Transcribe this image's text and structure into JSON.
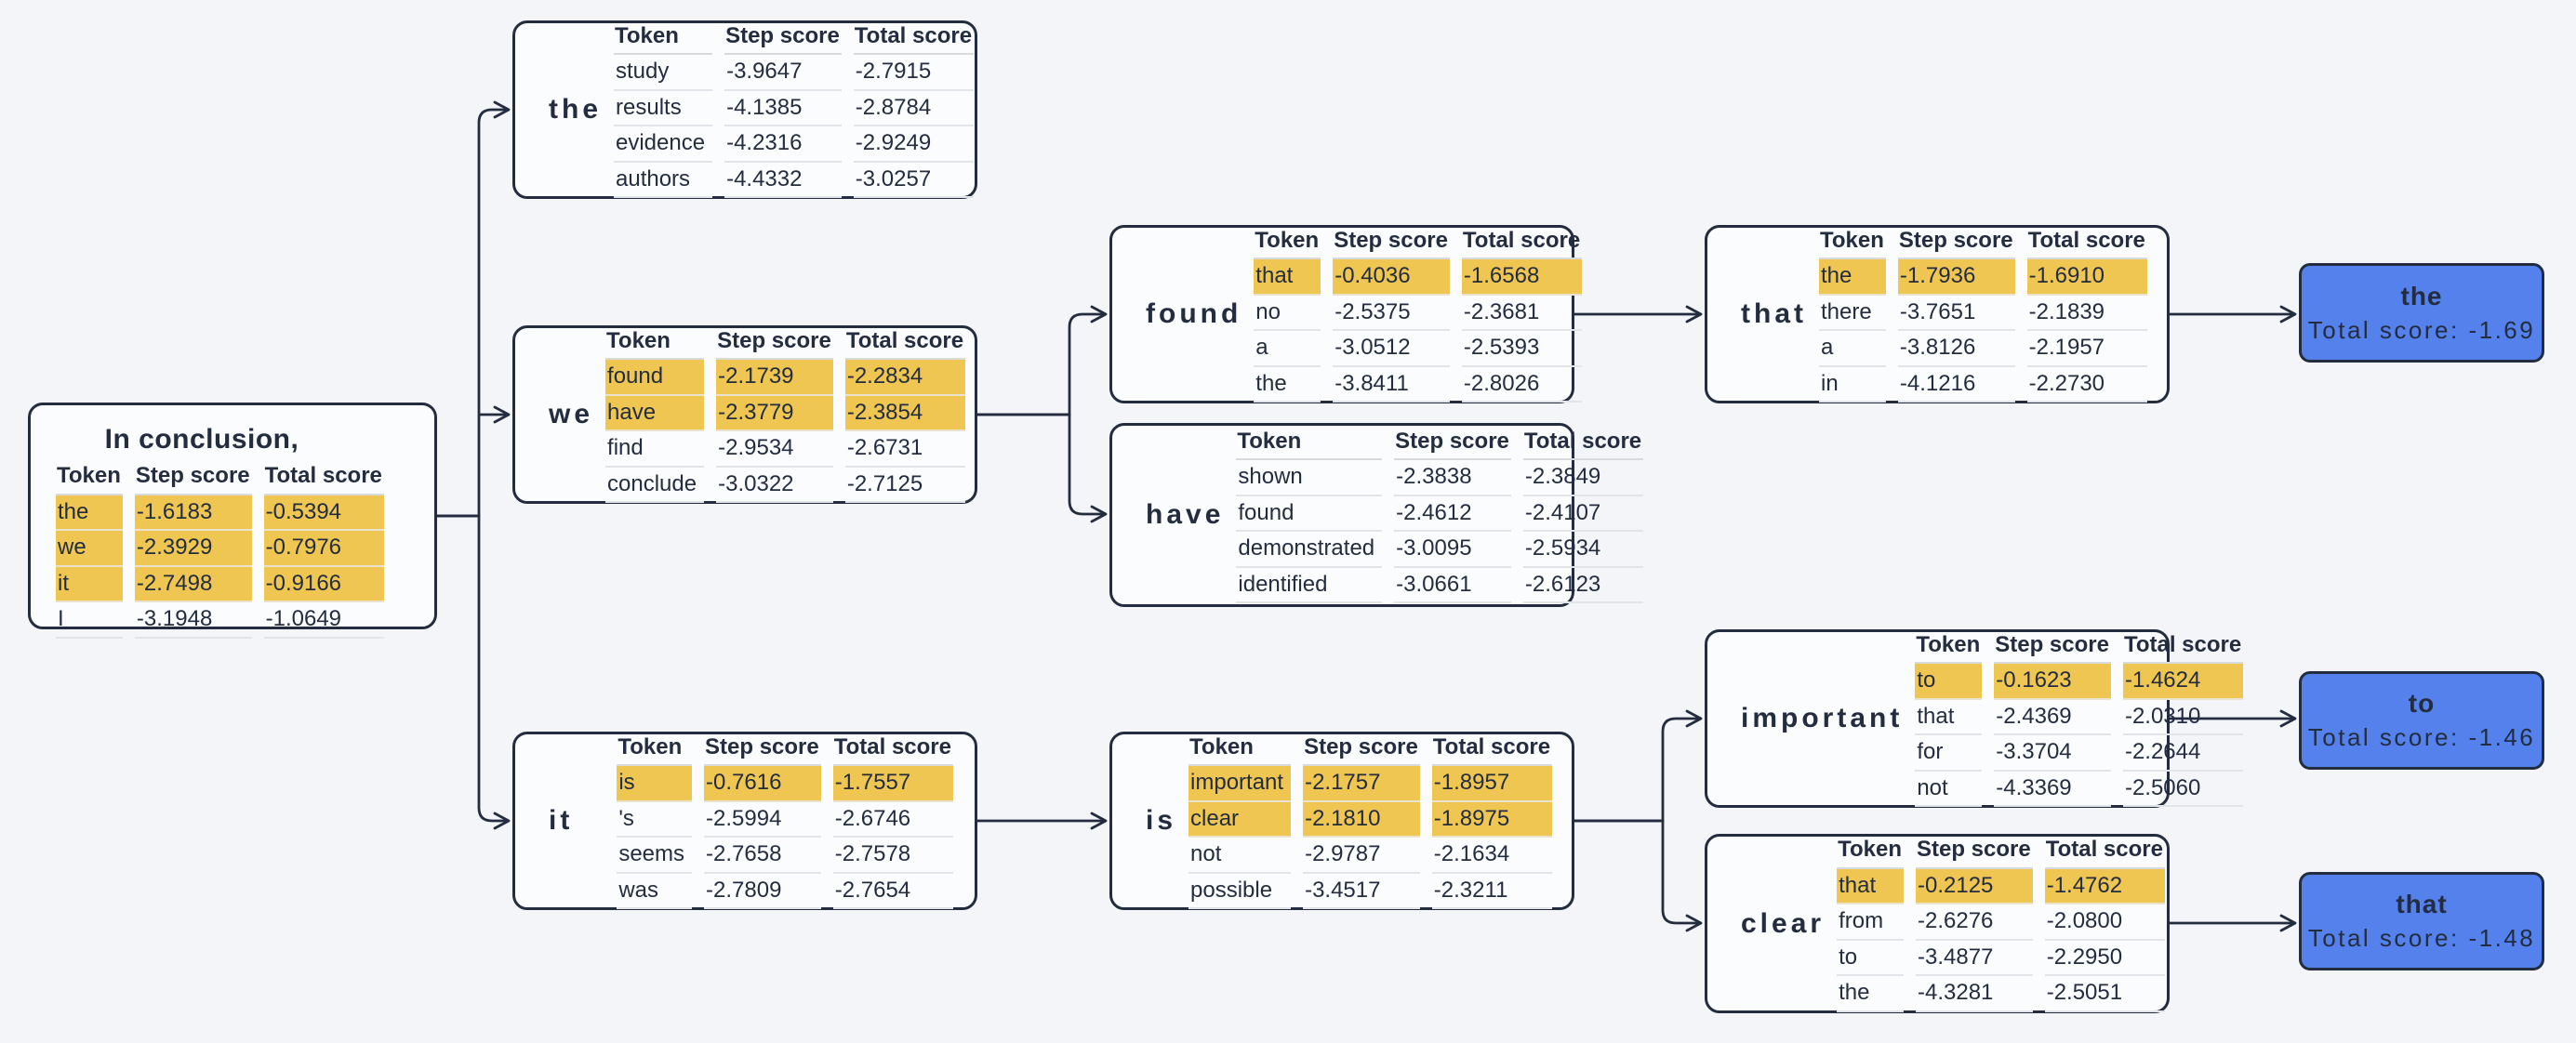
{
  "colors": {
    "background": "#f4f5f9",
    "node_fill": "#fbfcfe",
    "outline_dark": "#232d3f",
    "highlight_yellow": "#efc652",
    "final_blue": "#5481ec",
    "row_line_gray": "#d8dade"
  },
  "table_headers": [
    "Token",
    "Step score",
    "Total score"
  ],
  "nodes": [
    {
      "id": "root",
      "label": "In conclusion,",
      "rows": [
        {
          "token": "the",
          "step": "-1.6183",
          "total": "-0.5394",
          "hl": true
        },
        {
          "token": "we",
          "step": "-2.3929",
          "total": "-0.7976",
          "hl": true
        },
        {
          "token": "it",
          "step": "-2.7498",
          "total": "-0.9166",
          "hl": true
        },
        {
          "token": "I",
          "step": "-3.1948",
          "total": "-1.0649",
          "hl": false
        }
      ]
    },
    {
      "id": "the",
      "label": "the",
      "rows": [
        {
          "token": "study",
          "step": "-3.9647",
          "total": "-2.7915",
          "hl": false
        },
        {
          "token": "results",
          "step": "-4.1385",
          "total": "-2.8784",
          "hl": false
        },
        {
          "token": "evidence",
          "step": "-4.2316",
          "total": "-2.9249",
          "hl": false
        },
        {
          "token": "authors",
          "step": "-4.4332",
          "total": "-3.0257",
          "hl": false
        }
      ]
    },
    {
      "id": "we",
      "label": "we",
      "rows": [
        {
          "token": "found",
          "step": "-2.1739",
          "total": "-2.2834",
          "hl": true
        },
        {
          "token": "have",
          "step": "-2.3779",
          "total": "-2.3854",
          "hl": true
        },
        {
          "token": "find",
          "step": "-2.9534",
          "total": "-2.6731",
          "hl": false
        },
        {
          "token": "conclude",
          "step": "-3.0322",
          "total": "-2.7125",
          "hl": false
        }
      ]
    },
    {
      "id": "it",
      "label": "it",
      "rows": [
        {
          "token": "is",
          "step": "-0.7616",
          "total": "-1.7557",
          "hl": true
        },
        {
          "token": "'s",
          "step": "-2.5994",
          "total": "-2.6746",
          "hl": false
        },
        {
          "token": "seems",
          "step": "-2.7658",
          "total": "-2.7578",
          "hl": false
        },
        {
          "token": "was",
          "step": "-2.7809",
          "total": "-2.7654",
          "hl": false
        }
      ]
    },
    {
      "id": "found",
      "label": "found",
      "rows": [
        {
          "token": "that",
          "step": "-0.4036",
          "total": "-1.6568",
          "hl": true
        },
        {
          "token": "no",
          "step": "-2.5375",
          "total": "-2.3681",
          "hl": false
        },
        {
          "token": "a",
          "step": "-3.0512",
          "total": "-2.5393",
          "hl": false
        },
        {
          "token": "the",
          "step": "-3.8411",
          "total": "-2.8026",
          "hl": false
        }
      ]
    },
    {
      "id": "have",
      "label": "have",
      "rows": [
        {
          "token": "shown",
          "step": "-2.3838",
          "total": "-2.3849",
          "hl": false
        },
        {
          "token": "found",
          "step": "-2.4612",
          "total": "-2.4107",
          "hl": false
        },
        {
          "token": "demonstrated",
          "step": "-3.0095",
          "total": "-2.5934",
          "hl": false
        },
        {
          "token": "identified",
          "step": "-3.0661",
          "total": "-2.6123",
          "hl": false
        }
      ]
    },
    {
      "id": "is",
      "label": "is",
      "rows": [
        {
          "token": "important",
          "step": "-2.1757",
          "total": "-1.8957",
          "hl": true
        },
        {
          "token": "clear",
          "step": "-2.1810",
          "total": "-1.8975",
          "hl": true
        },
        {
          "token": "not",
          "step": "-2.9787",
          "total": "-2.1634",
          "hl": false
        },
        {
          "token": "possible",
          "step": "-3.4517",
          "total": "-2.3211",
          "hl": false
        }
      ]
    },
    {
      "id": "that",
      "label": "that",
      "rows": [
        {
          "token": "the",
          "step": "-1.7936",
          "total": "-1.6910",
          "hl": true
        },
        {
          "token": "there",
          "step": "-3.7651",
          "total": "-2.1839",
          "hl": false
        },
        {
          "token": "a",
          "step": "-3.8126",
          "total": "-2.1957",
          "hl": false
        },
        {
          "token": "in",
          "step": "-4.1216",
          "total": "-2.2730",
          "hl": false
        }
      ]
    },
    {
      "id": "important",
      "label": "important",
      "rows": [
        {
          "token": "to",
          "step": "-0.1623",
          "total": "-1.4624",
          "hl": true
        },
        {
          "token": "that",
          "step": "-2.4369",
          "total": "-2.0310",
          "hl": false
        },
        {
          "token": "for",
          "step": "-3.3704",
          "total": "-2.2644",
          "hl": false
        },
        {
          "token": "not",
          "step": "-4.3369",
          "total": "-2.5060",
          "hl": false
        }
      ]
    },
    {
      "id": "clear",
      "label": "clear",
      "rows": [
        {
          "token": "that",
          "step": "-0.2125",
          "total": "-1.4762",
          "hl": true
        },
        {
          "token": "from",
          "step": "-2.6276",
          "total": "-2.0800",
          "hl": false
        },
        {
          "token": "to",
          "step": "-3.4877",
          "total": "-2.2950",
          "hl": false
        },
        {
          "token": "the",
          "step": "-4.3281",
          "total": "-2.5051",
          "hl": false
        }
      ]
    }
  ],
  "finals": [
    {
      "label": "the",
      "score": "Total score: -1.69"
    },
    {
      "label": "to",
      "score": "Total score: -1.46"
    },
    {
      "label": "that",
      "score": "Total score: -1.48"
    }
  ]
}
